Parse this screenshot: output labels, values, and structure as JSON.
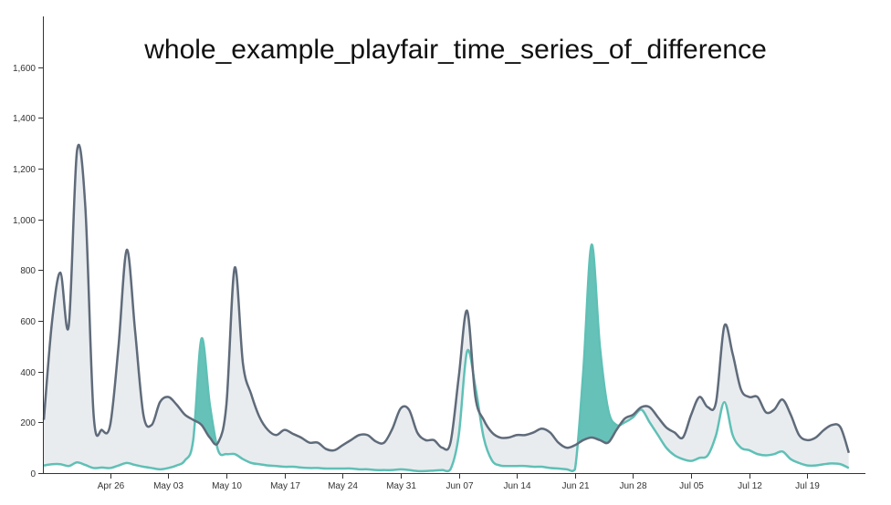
{
  "chart_data": {
    "type": "area",
    "title": "whole_example_playfair_time_series_of_difference",
    "xlabel": "",
    "ylabel": "",
    "ylim": [
      0,
      1800
    ],
    "yticks": [
      0,
      200,
      400,
      600,
      800,
      1000,
      1200,
      1400,
      1600
    ],
    "ytick_labels": [
      "0",
      "200",
      "400",
      "600",
      "800",
      "1,000",
      "1,200",
      "1,400",
      "1,600"
    ],
    "x_start": "2020-04-18",
    "x_end": "2020-07-26",
    "xticks": [
      "2020-04-26",
      "2020-05-03",
      "2020-05-10",
      "2020-05-17",
      "2020-05-24",
      "2020-05-31",
      "2020-06-07",
      "2020-06-14",
      "2020-06-21",
      "2020-06-28",
      "2020-07-05",
      "2020-07-12",
      "2020-07-19"
    ],
    "xtick_labels": [
      "Apr 26",
      "May 03",
      "May 10",
      "May 17",
      "May 24",
      "May 31",
      "Jun 07",
      "Jun 14",
      "Jun 21",
      "Jun 28",
      "Jul 05",
      "Jul 12",
      "Jul 19"
    ],
    "grid": false,
    "fill_colors": {
      "series1_above": "#e9ecef",
      "series2_above": "#66c2b8"
    },
    "series": [
      {
        "color": "#5f6b7a",
        "points": [
          [
            "2020-04-18",
            210
          ],
          [
            "2020-04-19",
            600
          ],
          [
            "2020-04-20",
            790
          ],
          [
            "2020-04-21",
            580
          ],
          [
            "2020-04-22",
            1270
          ],
          [
            "2020-04-23",
            1050
          ],
          [
            "2020-04-24",
            230
          ],
          [
            "2020-04-25",
            170
          ],
          [
            "2020-04-26",
            190
          ],
          [
            "2020-04-27",
            500
          ],
          [
            "2020-04-28",
            880
          ],
          [
            "2020-04-29",
            560
          ],
          [
            "2020-04-30",
            230
          ],
          [
            "2020-05-01",
            190
          ],
          [
            "2020-05-02",
            280
          ],
          [
            "2020-05-03",
            300
          ],
          [
            "2020-05-04",
            270
          ],
          [
            "2020-05-05",
            230
          ],
          [
            "2020-05-06",
            210
          ],
          [
            "2020-05-07",
            190
          ],
          [
            "2020-05-08",
            140
          ],
          [
            "2020-05-09",
            120
          ],
          [
            "2020-05-10",
            270
          ],
          [
            "2020-05-11",
            810
          ],
          [
            "2020-05-12",
            430
          ],
          [
            "2020-05-13",
            310
          ],
          [
            "2020-05-14",
            220
          ],
          [
            "2020-05-15",
            170
          ],
          [
            "2020-05-16",
            150
          ],
          [
            "2020-05-17",
            170
          ],
          [
            "2020-05-18",
            155
          ],
          [
            "2020-05-19",
            140
          ],
          [
            "2020-05-20",
            120
          ],
          [
            "2020-05-21",
            120
          ],
          [
            "2020-05-22",
            95
          ],
          [
            "2020-05-23",
            90
          ],
          [
            "2020-05-24",
            110
          ],
          [
            "2020-05-25",
            130
          ],
          [
            "2020-05-26",
            150
          ],
          [
            "2020-05-27",
            150
          ],
          [
            "2020-05-28",
            125
          ],
          [
            "2020-05-29",
            120
          ],
          [
            "2020-05-30",
            175
          ],
          [
            "2020-05-31",
            255
          ],
          [
            "2020-06-01",
            250
          ],
          [
            "2020-06-02",
            160
          ],
          [
            "2020-06-03",
            130
          ],
          [
            "2020-06-04",
            130
          ],
          [
            "2020-06-05",
            100
          ],
          [
            "2020-06-06",
            120
          ],
          [
            "2020-06-07",
            380
          ],
          [
            "2020-06-08",
            640
          ],
          [
            "2020-06-09",
            300
          ],
          [
            "2020-06-10",
            210
          ],
          [
            "2020-06-11",
            160
          ],
          [
            "2020-06-12",
            140
          ],
          [
            "2020-06-13",
            140
          ],
          [
            "2020-06-14",
            150
          ],
          [
            "2020-06-15",
            150
          ],
          [
            "2020-06-16",
            160
          ],
          [
            "2020-06-17",
            175
          ],
          [
            "2020-06-18",
            160
          ],
          [
            "2020-06-19",
            120
          ],
          [
            "2020-06-20",
            100
          ],
          [
            "2020-06-21",
            110
          ],
          [
            "2020-06-22",
            130
          ],
          [
            "2020-06-23",
            140
          ],
          [
            "2020-06-24",
            130
          ],
          [
            "2020-06-25",
            120
          ],
          [
            "2020-06-26",
            170
          ],
          [
            "2020-06-27",
            215
          ],
          [
            "2020-06-28",
            230
          ],
          [
            "2020-06-29",
            260
          ],
          [
            "2020-06-30",
            260
          ],
          [
            "2020-07-01",
            220
          ],
          [
            "2020-07-02",
            180
          ],
          [
            "2020-07-03",
            160
          ],
          [
            "2020-07-04",
            140
          ],
          [
            "2020-07-05",
            230
          ],
          [
            "2020-07-06",
            300
          ],
          [
            "2020-07-07",
            260
          ],
          [
            "2020-07-08",
            280
          ],
          [
            "2020-07-09",
            580
          ],
          [
            "2020-07-10",
            470
          ],
          [
            "2020-07-11",
            330
          ],
          [
            "2020-07-12",
            300
          ],
          [
            "2020-07-13",
            300
          ],
          [
            "2020-07-14",
            240
          ],
          [
            "2020-07-15",
            250
          ],
          [
            "2020-07-16",
            290
          ],
          [
            "2020-07-17",
            230
          ],
          [
            "2020-07-18",
            150
          ],
          [
            "2020-07-19",
            130
          ],
          [
            "2020-07-20",
            140
          ],
          [
            "2020-07-21",
            170
          ],
          [
            "2020-07-22",
            190
          ],
          [
            "2020-07-23",
            180
          ],
          [
            "2020-07-24",
            80
          ]
        ]
      },
      {
        "color": "#5fc0b6",
        "points": [
          [
            "2020-04-18",
            30
          ],
          [
            "2020-04-19",
            35
          ],
          [
            "2020-04-20",
            35
          ],
          [
            "2020-04-21",
            28
          ],
          [
            "2020-04-22",
            42
          ],
          [
            "2020-04-23",
            32
          ],
          [
            "2020-04-24",
            20
          ],
          [
            "2020-04-25",
            22
          ],
          [
            "2020-04-26",
            20
          ],
          [
            "2020-04-27",
            30
          ],
          [
            "2020-04-28",
            40
          ],
          [
            "2020-04-29",
            32
          ],
          [
            "2020-04-30",
            25
          ],
          [
            "2020-05-01",
            20
          ],
          [
            "2020-05-02",
            15
          ],
          [
            "2020-05-03",
            20
          ],
          [
            "2020-05-04",
            30
          ],
          [
            "2020-05-05",
            50
          ],
          [
            "2020-05-06",
            130
          ],
          [
            "2020-05-07",
            530
          ],
          [
            "2020-05-08",
            270
          ],
          [
            "2020-05-09",
            90
          ],
          [
            "2020-05-10",
            75
          ],
          [
            "2020-05-11",
            75
          ],
          [
            "2020-05-12",
            55
          ],
          [
            "2020-05-13",
            40
          ],
          [
            "2020-05-14",
            35
          ],
          [
            "2020-05-15",
            30
          ],
          [
            "2020-05-16",
            28
          ],
          [
            "2020-05-17",
            25
          ],
          [
            "2020-05-18",
            25
          ],
          [
            "2020-05-19",
            22
          ],
          [
            "2020-05-20",
            20
          ],
          [
            "2020-05-21",
            20
          ],
          [
            "2020-05-22",
            18
          ],
          [
            "2020-05-23",
            18
          ],
          [
            "2020-05-24",
            18
          ],
          [
            "2020-05-25",
            18
          ],
          [
            "2020-05-26",
            15
          ],
          [
            "2020-05-27",
            15
          ],
          [
            "2020-05-28",
            12
          ],
          [
            "2020-05-29",
            12
          ],
          [
            "2020-05-30",
            12
          ],
          [
            "2020-05-31",
            15
          ],
          [
            "2020-06-01",
            12
          ],
          [
            "2020-06-02",
            8
          ],
          [
            "2020-06-03",
            8
          ],
          [
            "2020-06-04",
            10
          ],
          [
            "2020-06-05",
            12
          ],
          [
            "2020-06-06",
            15
          ],
          [
            "2020-06-07",
            150
          ],
          [
            "2020-06-08",
            480
          ],
          [
            "2020-06-09",
            340
          ],
          [
            "2020-06-10",
            140
          ],
          [
            "2020-06-11",
            50
          ],
          [
            "2020-06-12",
            30
          ],
          [
            "2020-06-13",
            28
          ],
          [
            "2020-06-14",
            28
          ],
          [
            "2020-06-15",
            28
          ],
          [
            "2020-06-16",
            25
          ],
          [
            "2020-06-17",
            25
          ],
          [
            "2020-06-18",
            20
          ],
          [
            "2020-06-19",
            18
          ],
          [
            "2020-06-20",
            15
          ],
          [
            "2020-06-21",
            15
          ],
          [
            "2020-06-22",
            400
          ],
          [
            "2020-06-23",
            900
          ],
          [
            "2020-06-24",
            500
          ],
          [
            "2020-06-25",
            250
          ],
          [
            "2020-06-26",
            190
          ],
          [
            "2020-06-27",
            200
          ],
          [
            "2020-06-28",
            220
          ],
          [
            "2020-06-29",
            250
          ],
          [
            "2020-06-30",
            200
          ],
          [
            "2020-07-01",
            150
          ],
          [
            "2020-07-02",
            100
          ],
          [
            "2020-07-03",
            70
          ],
          [
            "2020-07-04",
            55
          ],
          [
            "2020-07-05",
            48
          ],
          [
            "2020-07-06",
            60
          ],
          [
            "2020-07-07",
            70
          ],
          [
            "2020-07-08",
            150
          ],
          [
            "2020-07-09",
            280
          ],
          [
            "2020-07-10",
            150
          ],
          [
            "2020-07-11",
            100
          ],
          [
            "2020-07-12",
            90
          ],
          [
            "2020-07-13",
            75
          ],
          [
            "2020-07-14",
            70
          ],
          [
            "2020-07-15",
            75
          ],
          [
            "2020-07-16",
            85
          ],
          [
            "2020-07-17",
            55
          ],
          [
            "2020-07-18",
            40
          ],
          [
            "2020-07-19",
            30
          ],
          [
            "2020-07-20",
            30
          ],
          [
            "2020-07-21",
            35
          ],
          [
            "2020-07-22",
            38
          ],
          [
            "2020-07-23",
            35
          ],
          [
            "2020-07-24",
            20
          ]
        ]
      }
    ]
  }
}
